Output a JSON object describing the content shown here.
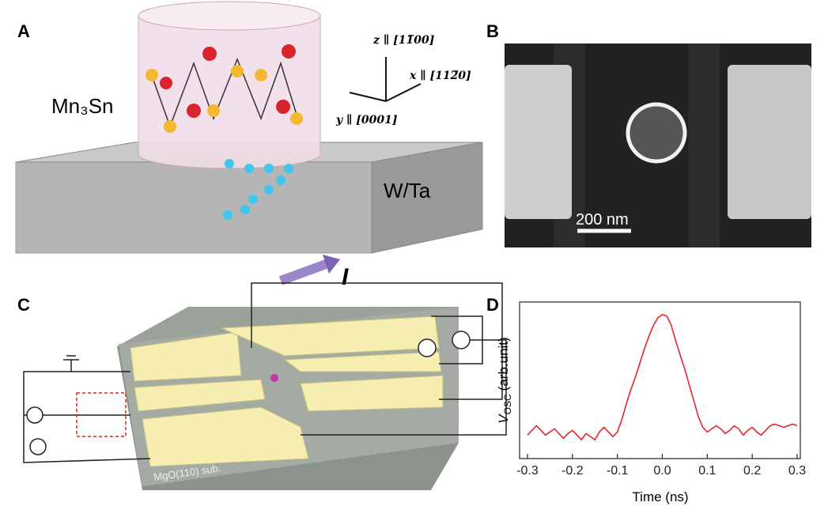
{
  "panel_a": {
    "label": "A",
    "material_top": "Mn₃Sn",
    "material_bottom": "W/Ta",
    "current": "I",
    "axis_z": "z ∥ [11̅00]",
    "axis_x": "x ∥ [112̅0]",
    "axis_y": "y ∥ [0001]"
  },
  "panel_b": {
    "label": "B",
    "scale_bar": "200 nm"
  },
  "panel_c": {
    "label": "C",
    "substrate": "MgO(110) sub."
  },
  "panel_d": {
    "label": "D"
  },
  "chart_data": {
    "type": "line",
    "xlabel": "Time (ns)",
    "ylabel": {
      "symbol": "V",
      "subscript": "OSC",
      "unit": "(arb.unit)"
    },
    "xlim": [
      -0.3,
      0.3
    ],
    "ylim": [
      0,
      1
    ],
    "xticks": [
      -0.3,
      -0.2,
      -0.1,
      {
        "value": 0,
        "label": "0.0"
      },
      0.1,
      0.2,
      0.3
    ],
    "color": "#e8242a",
    "x": [
      -0.3,
      -0.29,
      -0.28,
      -0.27,
      -0.26,
      -0.25,
      -0.24,
      -0.23,
      -0.22,
      -0.21,
      -0.2,
      -0.19,
      -0.18,
      -0.17,
      -0.16,
      -0.15,
      -0.14,
      -0.13,
      -0.12,
      -0.11,
      -0.1,
      -0.09,
      -0.08,
      -0.07,
      -0.06,
      -0.05,
      -0.04,
      -0.03,
      -0.02,
      -0.01,
      0,
      0.01,
      0.02,
      0.03,
      0.04,
      0.05,
      0.06,
      0.07,
      0.08,
      0.09,
      0.1,
      0.11,
      0.12,
      0.13,
      0.14,
      0.15,
      0.16,
      0.17,
      0.18,
      0.19,
      0.2,
      0.21,
      0.22,
      0.23,
      0.24,
      0.25,
      0.26,
      0.27,
      0.28,
      0.29,
      0.3
    ],
    "values": [
      0.15,
      0.18,
      0.21,
      0.18,
      0.15,
      0.17,
      0.19,
      0.16,
      0.13,
      0.16,
      0.18,
      0.15,
      0.12,
      0.16,
      0.14,
      0.12,
      0.17,
      0.2,
      0.17,
      0.14,
      0.17,
      0.25,
      0.35,
      0.44,
      0.52,
      0.61,
      0.7,
      0.78,
      0.85,
      0.9,
      0.92,
      0.91,
      0.85,
      0.75,
      0.66,
      0.57,
      0.47,
      0.37,
      0.27,
      0.2,
      0.17,
      0.19,
      0.21,
      0.19,
      0.16,
      0.18,
      0.21,
      0.19,
      0.15,
      0.18,
      0.2,
      0.17,
      0.15,
      0.18,
      0.21,
      0.22,
      0.21,
      0.2,
      0.21,
      0.22,
      0.21
    ]
  }
}
